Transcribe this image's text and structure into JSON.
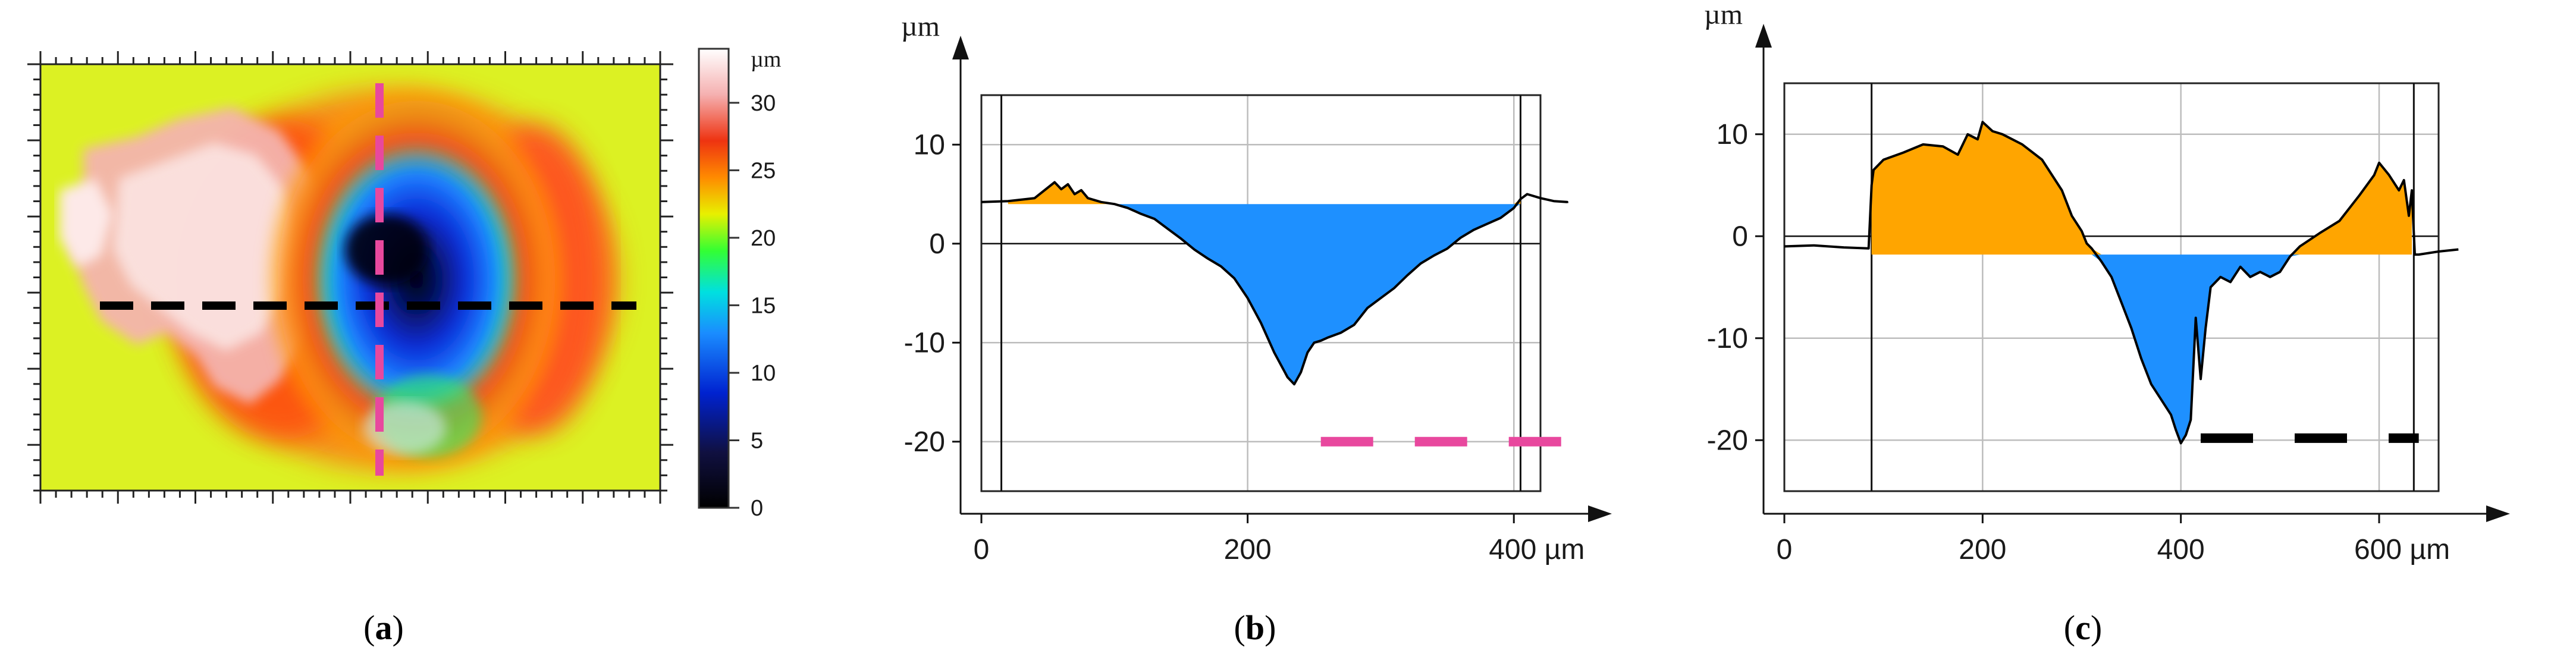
{
  "colors": {
    "fill_above": "#FFA500",
    "fill_below": "#1E90FF",
    "profile_line": "#000000",
    "magenta_dash": "#E8489E",
    "black_dash": "#000000",
    "grid": "#BDBDBD"
  },
  "panels": [
    {
      "id": "a",
      "open": "(",
      "letter": "a",
      "close": ")"
    },
    {
      "id": "b",
      "open": "(",
      "letter": "b",
      "close": ")"
    },
    {
      "id": "c",
      "open": "(",
      "letter": "c",
      "close": ")"
    }
  ],
  "chart_data": [
    {
      "panel": "a",
      "type": "heatmap",
      "title": "",
      "colorbar": {
        "unit": "µm",
        "ticks": [
          "0",
          "5",
          "10",
          "15",
          "20",
          "25",
          "30"
        ],
        "tick_values": [
          0,
          5,
          10,
          15,
          20,
          25,
          30
        ],
        "range": [
          0,
          34
        ]
      },
      "overlays": [
        {
          "kind": "horizontal-dashed-line",
          "color": "black",
          "profile": "c"
        },
        {
          "kind": "vertical-dashed-line",
          "color": "magenta",
          "profile": "b"
        }
      ]
    },
    {
      "panel": "b",
      "type": "area",
      "title": "",
      "ylabel": "µm",
      "xunit": "µm",
      "xlim": [
        0,
        420
      ],
      "ylim": [
        -25,
        15
      ],
      "xticks": [
        0,
        200,
        400
      ],
      "xtick_labels": [
        "0",
        "200",
        "400 µm"
      ],
      "yticks": [
        -20,
        -10,
        0,
        10
      ],
      "ytick_labels": [
        "-20",
        "-10",
        "0",
        "10"
      ],
      "grid": true,
      "reference_level": 4,
      "border_lines_x": [
        15,
        405
      ],
      "legend_dash": {
        "color": "magenta",
        "x_start": 255,
        "x_end": 450,
        "y": -20
      },
      "series": [
        {
          "x": [
            0,
            20,
            40,
            55,
            60,
            65,
            70,
            75,
            80,
            90,
            100,
            110,
            120,
            130,
            140,
            150,
            160,
            170,
            180,
            190,
            200,
            210,
            220,
            230,
            235,
            240,
            245,
            250,
            255,
            260,
            270,
            280,
            290,
            300,
            310,
            320,
            330,
            340,
            350,
            360,
            370,
            380,
            390,
            400,
            405,
            410,
            420,
            430,
            440,
            450
          ],
          "y": [
            4.2,
            4.3,
            4.6,
            6.2,
            5.5,
            6.0,
            5.0,
            5.4,
            4.6,
            4.2,
            4.0,
            3.6,
            3.0,
            2.5,
            1.5,
            0.5,
            -0.6,
            -1.5,
            -2.3,
            -3.5,
            -5.5,
            -8.0,
            -11.0,
            -13.5,
            -14.2,
            -13.0,
            -11.0,
            -10.0,
            -9.8,
            -9.5,
            -9.0,
            -8.2,
            -6.5,
            -5.5,
            -4.5,
            -3.2,
            -2.0,
            -1.2,
            -0.5,
            0.6,
            1.4,
            2.0,
            2.6,
            3.6,
            4.5,
            5.0,
            4.6,
            4.3,
            4.2,
            4.1
          ]
        }
      ]
    },
    {
      "panel": "c",
      "type": "area",
      "title": "",
      "ylabel": "µm",
      "xlim": [
        0,
        660
      ],
      "ylim": [
        -25,
        15
      ],
      "xticks": [
        0,
        200,
        400,
        600
      ],
      "xtick_labels": [
        "0",
        "200",
        "400",
        "600 µm"
      ],
      "yticks": [
        -20,
        -10,
        0,
        10
      ],
      "ytick_labels": [
        "-20",
        "-10",
        "0",
        "10"
      ],
      "grid": true,
      "reference_level": -1.8,
      "border_lines_x": [
        88,
        635
      ],
      "legend_dash": {
        "color": "black",
        "x_start": 420,
        "x_end": 640,
        "y": -19.8
      },
      "series": [
        {
          "x": [
            0,
            30,
            60,
            85,
            88,
            90,
            100,
            120,
            140,
            160,
            175,
            185,
            195,
            200,
            210,
            220,
            240,
            260,
            280,
            290,
            300,
            305,
            310,
            320,
            330,
            340,
            350,
            360,
            370,
            380,
            390,
            395,
            400,
            405,
            410,
            415,
            420,
            425,
            430,
            440,
            450,
            460,
            470,
            480,
            490,
            500,
            510,
            520,
            540,
            560,
            580,
            595,
            600,
            610,
            620,
            625,
            630,
            633,
            636,
            640,
            660,
            680
          ],
          "y": [
            -1.0,
            -0.9,
            -1.1,
            -1.2,
            5.0,
            6.5,
            7.5,
            8.2,
            9.0,
            8.8,
            8.0,
            10.0,
            9.5,
            11.2,
            10.3,
            10.0,
            9.0,
            7.5,
            4.5,
            2.0,
            0.5,
            -0.7,
            -1.2,
            -2.5,
            -4.0,
            -6.5,
            -9.0,
            -12.0,
            -14.5,
            -16.0,
            -17.5,
            -19.0,
            -20.3,
            -19.5,
            -18.0,
            -8.0,
            -14.0,
            -9.0,
            -5.0,
            -4.0,
            -4.5,
            -3.0,
            -4.0,
            -3.5,
            -4.0,
            -3.5,
            -2.0,
            -1.0,
            0.3,
            1.5,
            4.0,
            6.0,
            7.2,
            6.0,
            4.5,
            5.5,
            2.0,
            4.5,
            -1.8,
            -1.8,
            -1.5,
            -1.3
          ]
        }
      ]
    }
  ]
}
